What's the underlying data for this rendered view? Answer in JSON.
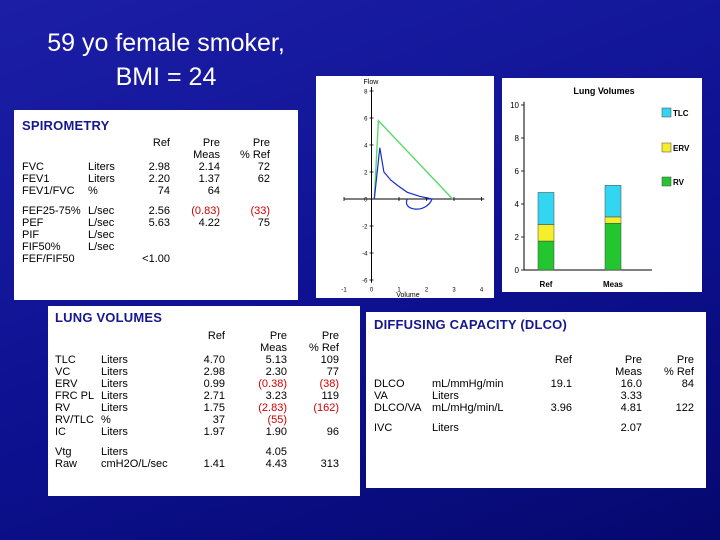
{
  "title": {
    "line1": "59 yo female smoker,",
    "line2": "BMI = 24"
  },
  "spirometry": {
    "title": "SPIROMETRY",
    "headers": {
      "ref": "Ref",
      "pre_meas": [
        "Pre",
        "Meas"
      ],
      "pre_ref": [
        "Pre",
        "% Ref"
      ]
    },
    "rows": [
      {
        "name": "FVC",
        "unit": "Liters",
        "ref": "2.98",
        "meas": "2.14",
        "pct": "72",
        "red": false
      },
      {
        "name": "FEV1",
        "unit": "Liters",
        "ref": "2.20",
        "meas": "1.37",
        "pct": "62",
        "red": false
      },
      {
        "name": "FEV1/FVC",
        "unit": "%",
        "ref": "74",
        "meas": "64",
        "pct": "",
        "red": false
      },
      {
        "spacer": true
      },
      {
        "name": "FEF25-75%",
        "unit": "L/sec",
        "ref": "2.56",
        "meas": "(0.83)",
        "pct": "(33)",
        "red": true
      },
      {
        "name": "PEF",
        "unit": "L/sec",
        "ref": "5.63",
        "meas": "4.22",
        "pct": "75",
        "red": false
      },
      {
        "name": "PIF",
        "unit": "L/sec",
        "ref": "",
        "meas": "",
        "pct": "",
        "red": false
      },
      {
        "name": "FIF50%",
        "unit": "L/sec",
        "ref": "",
        "meas": "",
        "pct": "",
        "red": false
      },
      {
        "name": "FEF/FIF50",
        "unit": "",
        "ref": "<1.00",
        "meas": "",
        "pct": "",
        "red": false
      }
    ]
  },
  "flow_volume": {
    "y_label": "Flow",
    "x_label": "Volume",
    "y_ticks": [
      "8",
      "6",
      "4",
      "2",
      "0",
      "-2",
      "-4",
      "-6"
    ],
    "x_ticks": [
      "-1",
      "0",
      "1",
      "2",
      "3",
      "4"
    ],
    "colors": {
      "predicted": "#5ad86a",
      "measured": "#1a2bd0"
    },
    "predicted": [
      [
        0.1,
        0
      ],
      [
        0.25,
        5.8
      ],
      [
        2.95,
        0
      ]
    ],
    "measured": [
      [
        0.1,
        0
      ],
      [
        0.3,
        3.8
      ],
      [
        0.45,
        2.0
      ],
      [
        0.7,
        1.4
      ],
      [
        0.95,
        1.0
      ],
      [
        1.3,
        0.5
      ],
      [
        1.75,
        0.2
      ],
      [
        2.2,
        0
      ]
    ]
  },
  "lung_volume_chart": {
    "title": "Lung Volumes",
    "y_ticks": [
      "10",
      "8",
      "6",
      "4",
      "2",
      "0"
    ],
    "ylim": [
      0,
      10
    ],
    "categories": [
      "Ref",
      "Meas"
    ],
    "legend": [
      {
        "name": "TLC",
        "color": "#33d6f0"
      },
      {
        "name": "ERV",
        "color": "#f4ef2a"
      },
      {
        "name": "RV",
        "color": "#23c62e"
      }
    ],
    "bars": [
      {
        "category": "Ref",
        "rv": 1.75,
        "erv": 1.0,
        "tlc": 4.7
      },
      {
        "category": "Meas",
        "rv": 2.83,
        "erv": 0.38,
        "tlc": 5.13
      }
    ]
  },
  "lung_volumes": {
    "title": "LUNG VOLUMES",
    "headers": {
      "ref": "Ref",
      "pre_meas": [
        "Pre",
        "Meas"
      ],
      "pre_ref": [
        "Pre",
        "% Ref"
      ]
    },
    "rows": [
      {
        "name": "TLC",
        "unit": "Liters",
        "ref": "4.70",
        "meas": "5.13",
        "pct": "109",
        "red": false
      },
      {
        "name": "VC",
        "unit": "Liters",
        "ref": "2.98",
        "meas": "2.30",
        "pct": "77",
        "red": false
      },
      {
        "name": "ERV",
        "unit": "Liters",
        "ref": "0.99",
        "meas": "(0.38)",
        "pct": "(38)",
        "red": true
      },
      {
        "name": "FRC PL",
        "unit": "Liters",
        "ref": "2.71",
        "meas": "3.23",
        "pct": "119",
        "red": false
      },
      {
        "name": "RV",
        "unit": "Liters",
        "ref": "1.75",
        "meas": "(2.83)",
        "pct": "(162)",
        "red": true
      },
      {
        "name": "RV/TLC",
        "unit": "%",
        "ref": "37",
        "meas": "(55)",
        "pct": "",
        "red": true
      },
      {
        "name": "IC",
        "unit": "Liters",
        "ref": "1.97",
        "meas": "1.90",
        "pct": "96",
        "red": false
      },
      {
        "spacer": true
      },
      {
        "name": "Vtg",
        "unit": "Liters",
        "ref": "",
        "meas": "4.05",
        "pct": "",
        "red": false
      },
      {
        "name": "Raw",
        "unit": "cmH2O/L/sec",
        "ref": "1.41",
        "meas": "4.43",
        "pct": "313",
        "red": false
      }
    ]
  },
  "dlco": {
    "title": "DIFFUSING CAPACITY (DLCO)",
    "headers": {
      "ref": "Ref",
      "pre_meas": [
        "Pre",
        "Meas"
      ],
      "pre_ref": [
        "Pre",
        "% Ref"
      ]
    },
    "rows": [
      {
        "name": "DLCO",
        "unit": "mL/mmHg/min",
        "ref": "19.1",
        "meas": "16.0",
        "pct": "84",
        "red": false
      },
      {
        "name": "VA",
        "unit": "Liters",
        "ref": "",
        "meas": "3.33",
        "pct": "",
        "red": false
      },
      {
        "name": "DLCO/VA",
        "unit": "mL/mHg/min/L",
        "ref": "3.96",
        "meas": "4.81",
        "pct": "122",
        "red": false
      },
      {
        "spacer": true
      },
      {
        "name": "IVC",
        "unit": "Liters",
        "ref": "",
        "meas": "2.07",
        "pct": "",
        "red": false
      }
    ]
  }
}
